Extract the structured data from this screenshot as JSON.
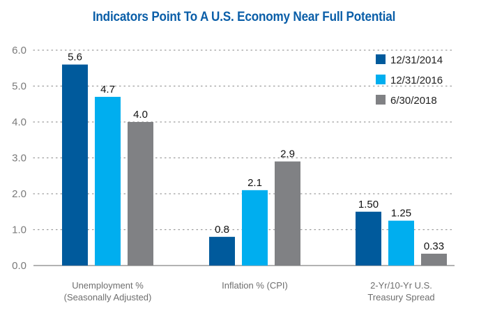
{
  "chart_data": {
    "type": "bar",
    "title": "Indicators Point To A U.S. Economy Near Full Potential",
    "xlabel": "",
    "ylabel": "",
    "ylim": [
      0,
      6
    ],
    "yticks": [
      0,
      1,
      2,
      3,
      4,
      5,
      6
    ],
    "ytick_labels": [
      "0.0",
      "1.0",
      "2.0",
      "3.0",
      "4.0",
      "5.0",
      "6.0"
    ],
    "grid": "horizontal-dotted",
    "legend_position": "top-right",
    "categories": [
      [
        "Unemployment %",
        "(Seasonally Adjusted)"
      ],
      [
        "Inflation % (CPI)"
      ],
      [
        "2-Yr/10-Yr U.S.",
        "Treasury Spread"
      ]
    ],
    "series": [
      {
        "name": "12/31/2014",
        "color": "#005a9c",
        "values": [
          5.6,
          0.8,
          1.5
        ],
        "labels": [
          "5.6",
          "0.8",
          "1.50"
        ]
      },
      {
        "name": "12/31/2016",
        "color": "#00aeef",
        "values": [
          4.7,
          2.1,
          1.25
        ],
        "labels": [
          "4.7",
          "2.1",
          "1.25"
        ]
      },
      {
        "name": "6/30/2018",
        "color": "#808184",
        "values": [
          4.0,
          2.9,
          0.33
        ],
        "labels": [
          "4.0",
          "2.9",
          "0.33"
        ]
      }
    ]
  },
  "colors": {
    "title": "#0a5ea8",
    "grid": "#9a9a9a",
    "axis": "#9a9a9a"
  }
}
